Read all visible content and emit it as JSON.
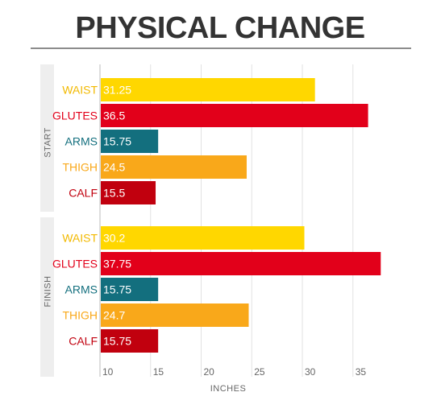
{
  "chart_data": {
    "type": "bar",
    "orientation": "horizontal",
    "title": "PHYSICAL CHANGE",
    "xlabel": "INCHES",
    "xlim": [
      10,
      37.5
    ],
    "xticks": [
      10,
      15,
      20,
      25,
      30,
      35
    ],
    "grid": true,
    "groups": [
      {
        "name": "START",
        "bars": [
          {
            "label": "WAIST",
            "value": 31.25,
            "value_text": "31.25"
          },
          {
            "label": "GLUTES",
            "value": 36.5,
            "value_text": "36.5"
          },
          {
            "label": "ARMS",
            "value": 15.75,
            "value_text": "15.75"
          },
          {
            "label": "THIGH",
            "value": 24.5,
            "value_text": "24.5"
          },
          {
            "label": "CALF",
            "value": 15.5,
            "value_text": "15.5"
          }
        ]
      },
      {
        "name": "FINISH",
        "bars": [
          {
            "label": "WAIST",
            "value": 30.2,
            "value_text": "30.2"
          },
          {
            "label": "GLUTES",
            "value": 37.75,
            "value_text": "37.75"
          },
          {
            "label": "ARMS",
            "value": 15.75,
            "value_text": "15.75"
          },
          {
            "label": "THIGH",
            "value": 24.7,
            "value_text": "24.7"
          },
          {
            "label": "CALF",
            "value": 15.75,
            "value_text": "15.75"
          }
        ]
      }
    ],
    "colors": {
      "WAIST": "#FFD700",
      "GLUTES": "#E2001A",
      "ARMS": "#136F7E",
      "THIGH": "#F9A81A",
      "CALF": "#C1000E"
    },
    "label_colors": {
      "WAIST": "#F2B900",
      "GLUTES": "#E2001A",
      "ARMS": "#136F7E",
      "THIGH": "#F9A81A",
      "CALF": "#C1000E"
    }
  }
}
